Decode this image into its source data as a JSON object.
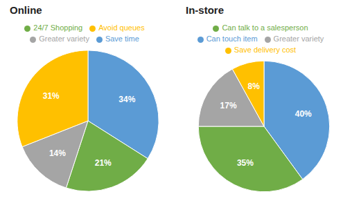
{
  "chart_data": [
    {
      "type": "pie",
      "title": "Online",
      "categories": [
        "Save time",
        "24/7 Shopping",
        "Greater variety",
        "Avoid queues"
      ],
      "values": [
        34,
        21,
        14,
        31
      ],
      "value_labels": [
        "34%",
        "21%",
        "14%",
        "31%"
      ],
      "colors": [
        "#5B9BD5",
        "#70AD47",
        "#A5A5A5",
        "#FFC000"
      ],
      "data_labels": true,
      "legend": "top"
    },
    {
      "type": "pie",
      "title": "In-store",
      "categories": [
        "Can touch item",
        "Can talk to a salesperson",
        "Greater variety",
        "Save delivery cost"
      ],
      "values": [
        40,
        35,
        17,
        8
      ],
      "value_labels": [
        "40%",
        "35%",
        "17%",
        "8%"
      ],
      "colors": [
        "#5B9BD5",
        "#70AD47",
        "#A5A5A5",
        "#FFC000"
      ],
      "data_labels": true,
      "legend": "top"
    }
  ]
}
